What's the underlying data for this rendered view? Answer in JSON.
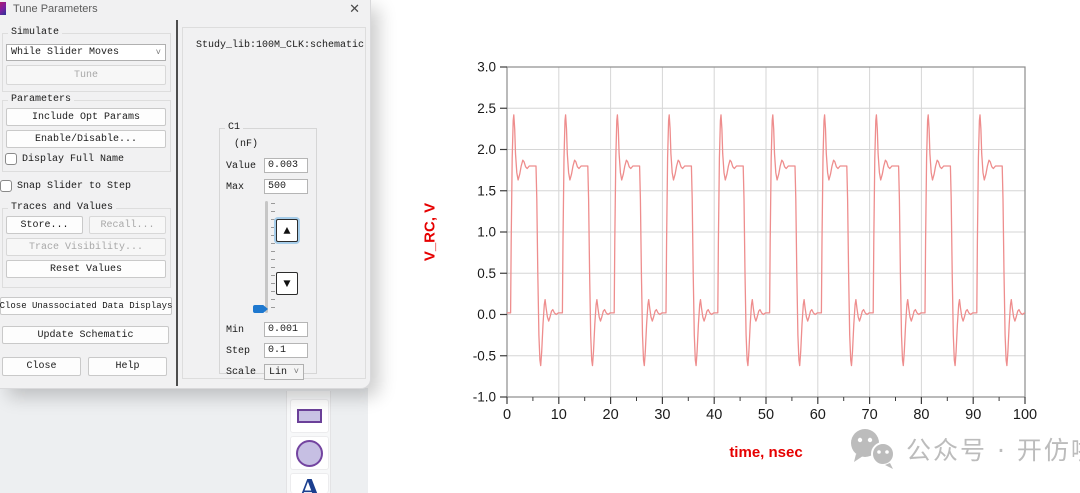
{
  "window": {
    "title": "Tune Parameters"
  },
  "icons": {
    "close": "✕",
    "chevron_down": "˅",
    "up_arrow": "▲",
    "down_arrow": "▼",
    "text_tool": "A"
  },
  "dialog": {
    "simulate": {
      "label": "Simulate",
      "mode": "While Slider Moves",
      "tune": "Tune"
    },
    "parameters": {
      "label": "Parameters",
      "include_opt": "Include Opt Params",
      "enable_disable": "Enable/Disable...",
      "display_full_name": "Display Full Name"
    },
    "snap_slider": "Snap Slider to Step",
    "traces": {
      "label": "Traces and Values",
      "store": "Store...",
      "recall": "Recall...",
      "visibility": "Trace Visibility...",
      "reset": "Reset Values"
    },
    "close_unassociated": "Close Unassociated Data Displays",
    "update_schematic": "Update Schematic",
    "close": "Close",
    "help": "Help",
    "tuner": {
      "design": "Study_lib:100M_CLK:schematic",
      "param": "C1",
      "units": "(nF)",
      "value_label": "Value",
      "value": "0.003",
      "max_label": "Max",
      "max": "500",
      "min_label": "Min",
      "min": "0.001",
      "step_label": "Step",
      "step": "0.1",
      "scale_label": "Scale",
      "scale": "Lin"
    }
  },
  "watermark": {
    "text": "公众号 · 开仿啦"
  },
  "chart_data": {
    "type": "line",
    "title": "",
    "xlabel": "time, nsec",
    "ylabel": "V_RC, V",
    "xlim": [
      0,
      100
    ],
    "ylim": [
      -1.0,
      3.0
    ],
    "x_tick_labels": [
      "0",
      "10",
      "20",
      "30",
      "40",
      "50",
      "60",
      "70",
      "80",
      "90",
      "100"
    ],
    "x_major_ticks": [
      0,
      10,
      20,
      30,
      40,
      50,
      60,
      70,
      80,
      90,
      100
    ],
    "x_minor_ticks": [
      5,
      15,
      25,
      35,
      45,
      55,
      65,
      75,
      85,
      95
    ],
    "y_tick_labels": [
      "-1.0",
      "-0.5",
      "0.0",
      "0.5",
      "1.0",
      "1.5",
      "2.0",
      "2.5",
      "3.0"
    ],
    "y_major_ticks": [
      -1.0,
      -0.5,
      0.0,
      0.5,
      1.0,
      1.5,
      2.0,
      2.5,
      3.0
    ],
    "grid": true,
    "legend": "none",
    "axis_label_color": "#e60000",
    "grid_color": "#d6d6d6",
    "frame_color": "#8c8c8c",
    "series": [
      {
        "name": "V_RC",
        "color": "#ee8d8d",
        "waveform": {
          "kind": "periodic_clock_with_ringing",
          "period_ns": 10,
          "cycles": 10,
          "first_rise_ns": 0.7,
          "high_level_v": 1.8,
          "low_level_v": 0.02,
          "overshoot_peak_v": 2.42,
          "undershoot_trough_v": -0.62,
          "period_template_points": [
            [
              0.0,
              0.02
            ],
            [
              0.12,
              0.9
            ],
            [
              0.3,
              1.9
            ],
            [
              0.5,
              2.35
            ],
            [
              0.62,
              2.42
            ],
            [
              0.78,
              2.25
            ],
            [
              0.95,
              1.95
            ],
            [
              1.2,
              1.72
            ],
            [
              1.45,
              1.63
            ],
            [
              1.75,
              1.7
            ],
            [
              2.05,
              1.8
            ],
            [
              2.35,
              1.87
            ],
            [
              2.6,
              1.85
            ],
            [
              2.9,
              1.79
            ],
            [
              3.2,
              1.77
            ],
            [
              3.6,
              1.8
            ],
            [
              4.2,
              1.8
            ],
            [
              4.9,
              1.8
            ],
            [
              5.05,
              1.4
            ],
            [
              5.25,
              0.5
            ],
            [
              5.45,
              -0.25
            ],
            [
              5.65,
              -0.55
            ],
            [
              5.8,
              -0.62
            ],
            [
              6.0,
              -0.45
            ],
            [
              6.25,
              -0.12
            ],
            [
              6.5,
              0.12
            ],
            [
              6.65,
              0.18
            ],
            [
              6.85,
              0.08
            ],
            [
              7.1,
              -0.03
            ],
            [
              7.35,
              -0.08
            ],
            [
              7.6,
              -0.03
            ],
            [
              7.9,
              0.04
            ],
            [
              8.15,
              0.06
            ],
            [
              8.45,
              0.02
            ],
            [
              8.8,
              0.0
            ],
            [
              9.2,
              0.02
            ],
            [
              10.0,
              0.02
            ]
          ]
        }
      }
    ]
  }
}
